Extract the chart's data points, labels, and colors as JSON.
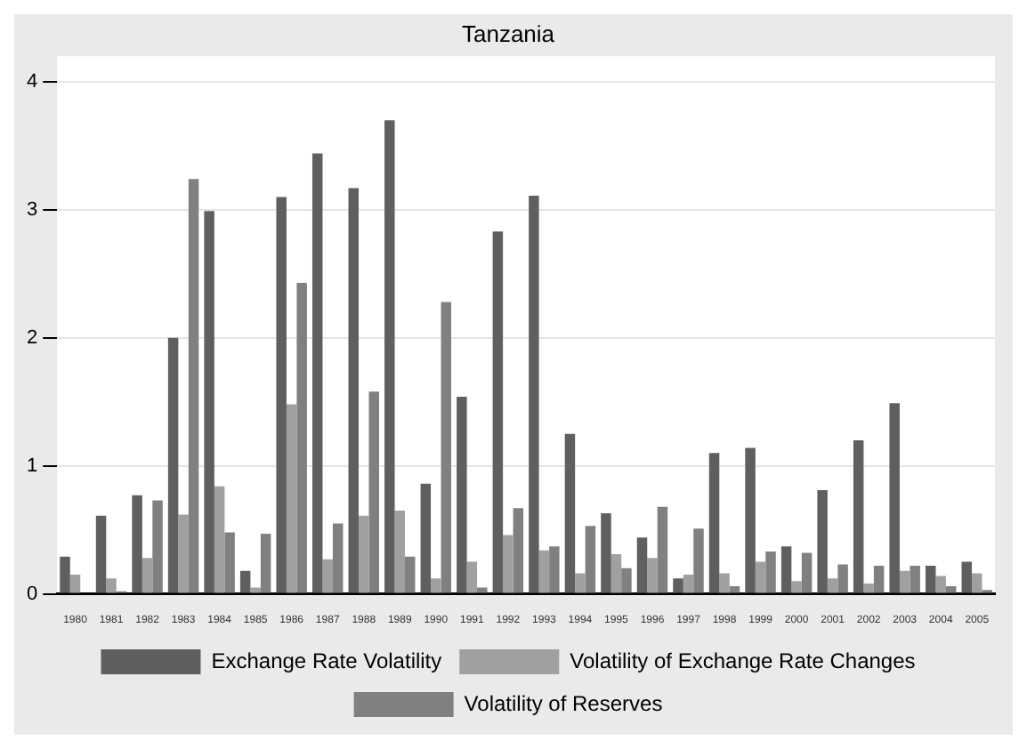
{
  "chart_data": {
    "type": "bar",
    "title": "Tanzania",
    "categories": [
      "1980",
      "1981",
      "1982",
      "1983",
      "1984",
      "1985",
      "1986",
      "1987",
      "1988",
      "1989",
      "1990",
      "1991",
      "1992",
      "1993",
      "1994",
      "1995",
      "1996",
      "1997",
      "1998",
      "1999",
      "2000",
      "2001",
      "2002",
      "2003",
      "2004",
      "2005"
    ],
    "series": [
      {
        "name": "Exchange Rate Volatility",
        "color": "#5f5f5f",
        "values": [
          0.29,
          0.61,
          0.77,
          2.0,
          2.99,
          0.18,
          3.1,
          3.44,
          3.17,
          3.7,
          0.86,
          1.54,
          2.83,
          3.11,
          1.25,
          0.63,
          0.44,
          0.12,
          1.1,
          1.14,
          0.37,
          0.81,
          1.2,
          1.49,
          0.22,
          0.25
        ]
      },
      {
        "name": "Volatility of Exchange Rate Changes",
        "color": "#a0a0a0",
        "values": [
          0.15,
          0.12,
          0.28,
          0.62,
          0.84,
          0.05,
          1.48,
          0.27,
          0.61,
          0.65,
          0.12,
          0.25,
          0.46,
          0.34,
          0.16,
          0.31,
          0.28,
          0.15,
          0.16,
          0.25,
          0.1,
          0.12,
          0.08,
          0.18,
          0.14,
          0.16
        ]
      },
      {
        "name": "Volatility of Reserves",
        "color": "#808080",
        "values": [
          0,
          0.02,
          0.73,
          3.24,
          0.48,
          0.47,
          2.43,
          0.55,
          1.58,
          0.29,
          2.28,
          0.05,
          0.67,
          0.37,
          0.53,
          0.2,
          0.68,
          0.51,
          0.06,
          0.33,
          0.32,
          0.23,
          0.22,
          0.22,
          0.06,
          0.03
        ]
      }
    ],
    "ylim": [
      0,
      4.2
    ],
    "yticks": [
      0,
      1,
      2,
      3,
      4
    ],
    "grid": "y",
    "legend": "bottom"
  }
}
